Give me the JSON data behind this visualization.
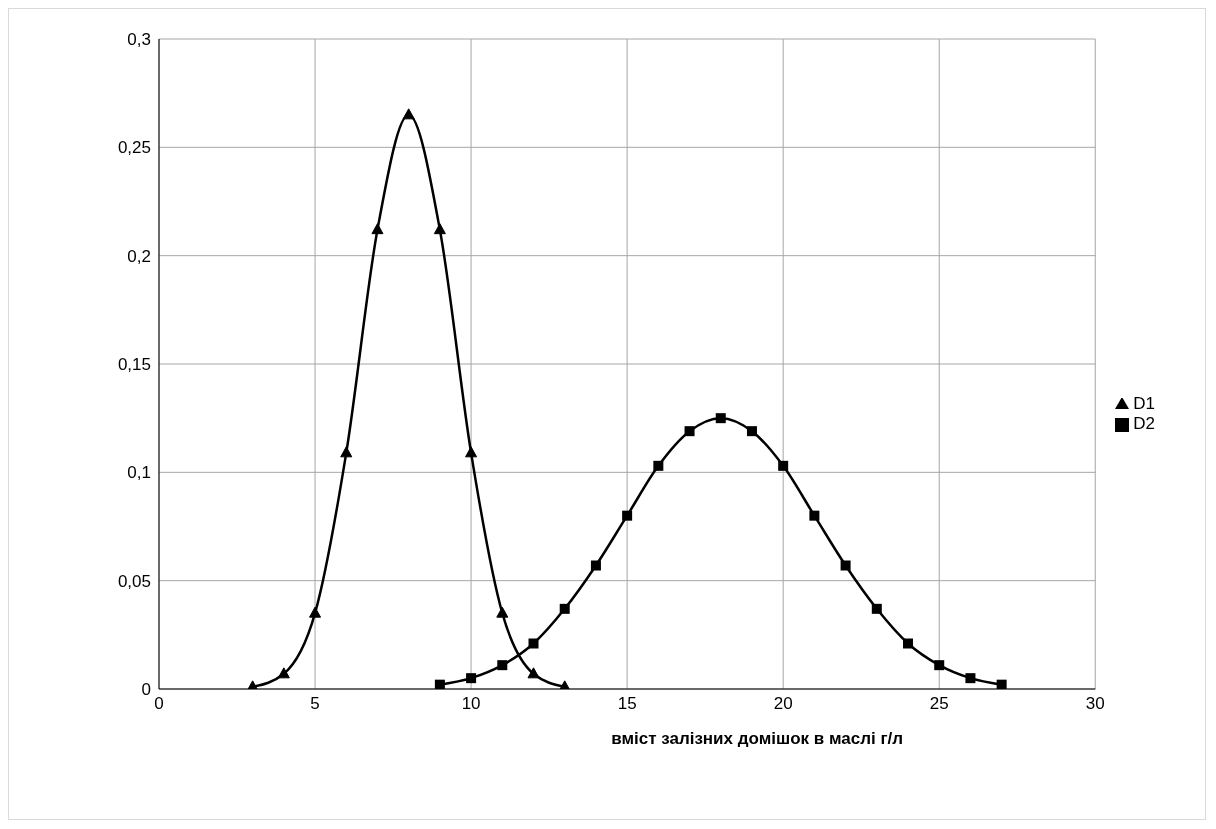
{
  "chart_data": {
    "type": "line",
    "xlabel": "вміст залізних домішок в маслі г/л",
    "xlim": [
      0,
      30
    ],
    "xticks": [
      0,
      5,
      10,
      15,
      20,
      25,
      30
    ],
    "ylim": [
      0,
      0.3
    ],
    "yticks": [
      {
        "value": 0,
        "label": "0"
      },
      {
        "value": 0.05,
        "label": "0,05"
      },
      {
        "value": 0.1,
        "label": "0,1"
      },
      {
        "value": 0.15,
        "label": "0,15"
      },
      {
        "value": 0.2,
        "label": "0,2"
      },
      {
        "value": 0.25,
        "label": "0,25"
      },
      {
        "value": 0.3,
        "label": "0,3"
      }
    ],
    "grid": true,
    "legend": "right",
    "series": [
      {
        "name": "D1",
        "color": "#000000",
        "marker": "triangle",
        "x": [
          3,
          4,
          5,
          6,
          7,
          8,
          9,
          10,
          11,
          12,
          13
        ],
        "values": [
          0.001,
          0.007,
          0.035,
          0.109,
          0.212,
          0.265,
          0.212,
          0.109,
          0.035,
          0.007,
          0.001
        ]
      },
      {
        "name": "D2",
        "color": "#000000",
        "marker": "square",
        "x": [
          9,
          10,
          11,
          12,
          13,
          14,
          15,
          16,
          17,
          18,
          19,
          20,
          21,
          22,
          23,
          24,
          25,
          26,
          27
        ],
        "values": [
          0.002,
          0.005,
          0.011,
          0.021,
          0.037,
          0.057,
          0.08,
          0.103,
          0.119,
          0.125,
          0.119,
          0.103,
          0.08,
          0.057,
          0.037,
          0.021,
          0.011,
          0.005,
          0.002
        ]
      }
    ]
  }
}
